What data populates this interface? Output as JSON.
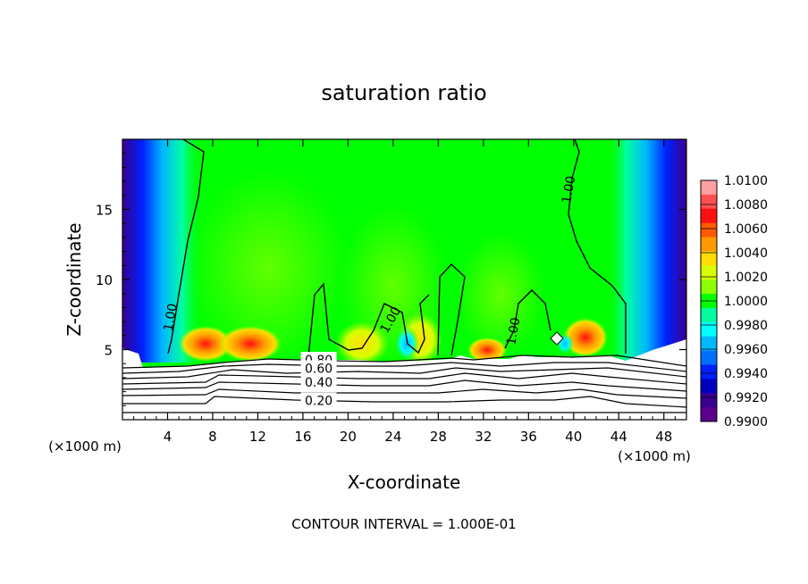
{
  "chart_data": {
    "type": "contour",
    "title": "saturation ratio",
    "xlabel": "X-coordinate",
    "ylabel": "Z-coordinate",
    "x_unit": "(×1000 m)",
    "xlim": [
      0,
      50
    ],
    "ylim": [
      0,
      20
    ],
    "x_ticks": [
      4,
      8,
      12,
      16,
      20,
      24,
      28,
      32,
      36,
      40,
      44,
      48
    ],
    "y_ticks": [
      5,
      10,
      15
    ],
    "colorbar": {
      "levels": [
        "1.0100",
        "1.0080",
        "1.0060",
        "1.0040",
        "1.0020",
        "1.0000",
        "0.9980",
        "0.9960",
        "0.9940",
        "0.9920",
        "0.9900"
      ],
      "colors": [
        "#ffa0a0",
        "#ff5050",
        "#ff1010",
        "#ff5a00",
        "#ff9900",
        "#ffdd00",
        "#d8ff00",
        "#8cff00",
        "#00ff00",
        "#00ffa0",
        "#00ffff",
        "#00b8ff",
        "#0070ff",
        "#0020ff",
        "#0000c0",
        "#3a0090",
        "#5a008c"
      ]
    },
    "contour_labels": [
      {
        "text": "1.00",
        "x": 4.3,
        "z": 7.3,
        "rotate": -80
      },
      {
        "text": "1.00",
        "x": 23.8,
        "z": 7.1,
        "rotate": -60
      },
      {
        "text": "1.00",
        "x": 34.7,
        "z": 6.3,
        "rotate": -80
      },
      {
        "text": "1.00",
        "x": 39.6,
        "z": 16.4,
        "rotate": -80
      },
      {
        "text": "0.80",
        "x": 17.4,
        "z": 4.2,
        "rotate": 0
      },
      {
        "text": "0.60",
        "x": 17.4,
        "z": 3.6,
        "rotate": 0
      },
      {
        "text": "0.40",
        "x": 17.4,
        "z": 2.6,
        "rotate": 0
      },
      {
        "text": "0.20",
        "x": 17.4,
        "z": 1.3,
        "rotate": 0
      }
    ],
    "footer": "CONTOUR INTERVAL = 1.000E-01"
  },
  "colors": {
    "background_field": "#00ff00",
    "contour_line": "#000000",
    "dry_region": "#ffffff"
  }
}
